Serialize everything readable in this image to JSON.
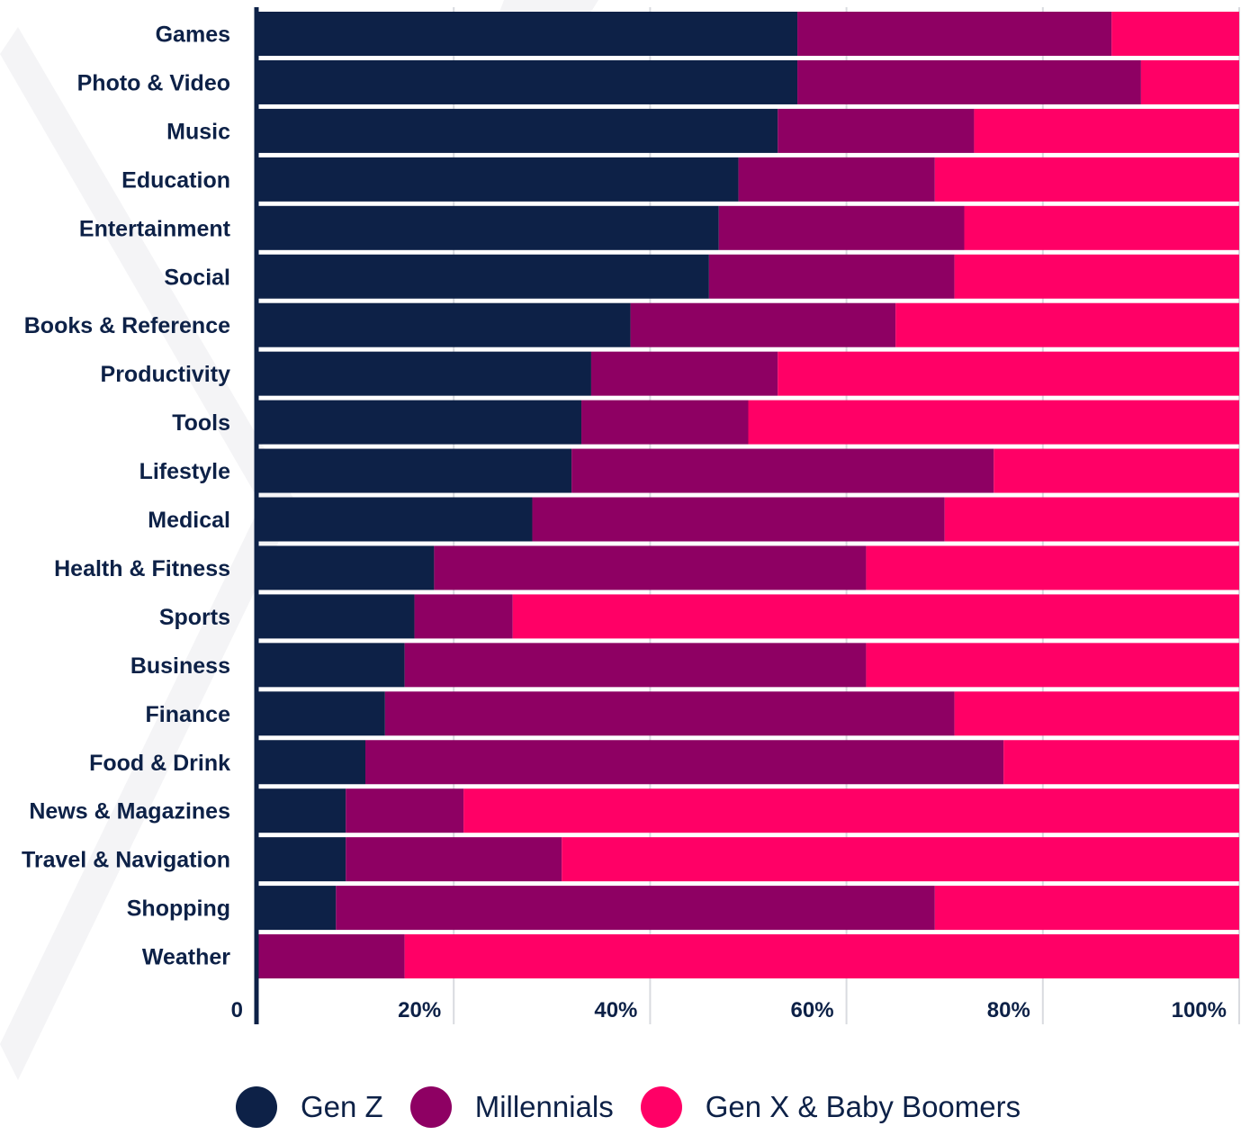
{
  "chart_data": {
    "type": "bar",
    "orientation": "horizontal",
    "stacked": true,
    "title": "",
    "xlabel": "",
    "ylabel": "",
    "xlim": [
      0,
      100
    ],
    "x_ticks": [
      "0",
      "20%",
      "40%",
      "60%",
      "80%",
      "100%"
    ],
    "grid": true,
    "legend_position": "bottom",
    "categories": [
      "Games",
      "Photo & Video",
      "Music",
      "Education",
      "Entertainment",
      "Social",
      "Books & Reference",
      "Productivity",
      "Tools",
      "Lifestyle",
      "Medical",
      "Health & Fitness",
      "Sports",
      "Business",
      "Finance",
      "Food & Drink",
      "News & Magazines",
      "Travel & Navigation",
      "Shopping",
      "Weather"
    ],
    "series": [
      {
        "name": "Gen Z",
        "color": "#0d2147",
        "values": [
          55,
          55,
          53,
          49,
          47,
          46,
          38,
          34,
          33,
          32,
          28,
          18,
          16,
          15,
          13,
          11,
          9,
          9,
          8,
          0
        ]
      },
      {
        "name": "Millennials",
        "color": "#8e0063",
        "values": [
          32,
          35,
          20,
          20,
          25,
          25,
          27,
          19,
          17,
          43,
          42,
          44,
          10,
          47,
          58,
          65,
          12,
          22,
          61,
          15
        ]
      },
      {
        "name": "Gen X & Baby Boomers",
        "color": "#ff0066",
        "values": [
          13,
          10,
          27,
          31,
          28,
          29,
          35,
          47,
          50,
          25,
          30,
          38,
          74,
          38,
          29,
          24,
          79,
          69,
          31,
          85
        ]
      }
    ]
  }
}
